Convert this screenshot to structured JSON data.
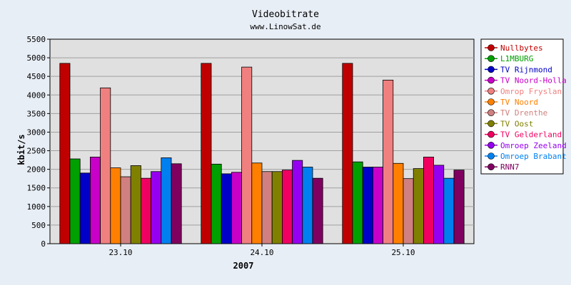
{
  "chart_data": {
    "type": "bar",
    "title": "Videobitrate",
    "subtitle": "www.LinowSat.de",
    "xlabel": "2007",
    "ylabel": "kbit/s",
    "ylim": [
      0,
      5500
    ],
    "ytick_step": 500,
    "grid": true,
    "legend_position": "right",
    "categories": [
      "23.10",
      "24.10",
      "25.10"
    ],
    "series": [
      {
        "name": "Nullbytes",
        "color": "#c00000",
        "values": [
          4850,
          4850,
          4850
        ]
      },
      {
        "name": "L1MBURG",
        "color": "#00a000",
        "values": [
          2280,
          2140,
          2200
        ]
      },
      {
        "name": "TV Rijnmond",
        "color": "#0000c8",
        "values": [
          1900,
          1880,
          2060
        ]
      },
      {
        "name": "TV Noord-Holla",
        "color": "#c800c8",
        "values": [
          2330,
          1920,
          2060
        ]
      },
      {
        "name": "Omrop Fryslan",
        "color": "#f08080",
        "values": [
          4190,
          4750,
          4400
        ]
      },
      {
        "name": "TV Noord",
        "color": "#ff8000",
        "values": [
          2040,
          2170,
          2160
        ]
      },
      {
        "name": "TV Drenthe",
        "color": "#d08080",
        "values": [
          1800,
          1940,
          1750
        ]
      },
      {
        "name": "TV Oost",
        "color": "#808000",
        "values": [
          2100,
          1940,
          2020
        ]
      },
      {
        "name": "TV Gelderland",
        "color": "#f00060",
        "values": [
          1760,
          1980,
          2330
        ]
      },
      {
        "name": "Omroep Zeeland",
        "color": "#9600f0",
        "values": [
          1940,
          2240,
          2110
        ]
      },
      {
        "name": "Omroep Brabant",
        "color": "#0080f0",
        "values": [
          2310,
          2060,
          1760
        ]
      },
      {
        "name": "RNN7",
        "color": "#800060",
        "values": [
          2150,
          1760,
          1980
        ]
      }
    ]
  }
}
